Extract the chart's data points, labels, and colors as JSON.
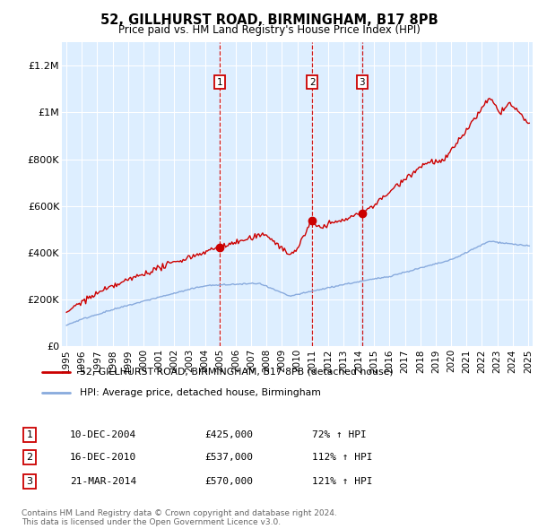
{
  "title": "52, GILLHURST ROAD, BIRMINGHAM, B17 8PB",
  "subtitle": "Price paid vs. HM Land Registry's House Price Index (HPI)",
  "bg_color": "#ddeeff",
  "red_line_color": "#cc0000",
  "blue_line_color": "#88aadd",
  "vline_color": "#cc0000",
  "sale_points": [
    {
      "year": 2004.95,
      "price": 425000,
      "label": "1"
    },
    {
      "year": 2010.97,
      "price": 537000,
      "label": "2"
    },
    {
      "year": 2014.22,
      "price": 570000,
      "label": "3"
    }
  ],
  "table_rows": [
    {
      "num": "1",
      "date": "10-DEC-2004",
      "price": "£425,000",
      "hpi": "72% ↑ HPI"
    },
    {
      "num": "2",
      "date": "16-DEC-2010",
      "price": "£537,000",
      "hpi": "112% ↑ HPI"
    },
    {
      "num": "3",
      "date": "21-MAR-2014",
      "price": "£570,000",
      "hpi": "121% ↑ HPI"
    }
  ],
  "legend_entries": [
    "52, GILLHURST ROAD, BIRMINGHAM, B17 8PB (detached house)",
    "HPI: Average price, detached house, Birmingham"
  ],
  "footer": "Contains HM Land Registry data © Crown copyright and database right 2024.\nThis data is licensed under the Open Government Licence v3.0.",
  "ylim": [
    0,
    1300000
  ],
  "yticks": [
    0,
    200000,
    400000,
    600000,
    800000,
    1000000,
    1200000
  ],
  "ytick_labels": [
    "£0",
    "£200K",
    "£400K",
    "£600K",
    "£800K",
    "£1M",
    "£1.2M"
  ]
}
